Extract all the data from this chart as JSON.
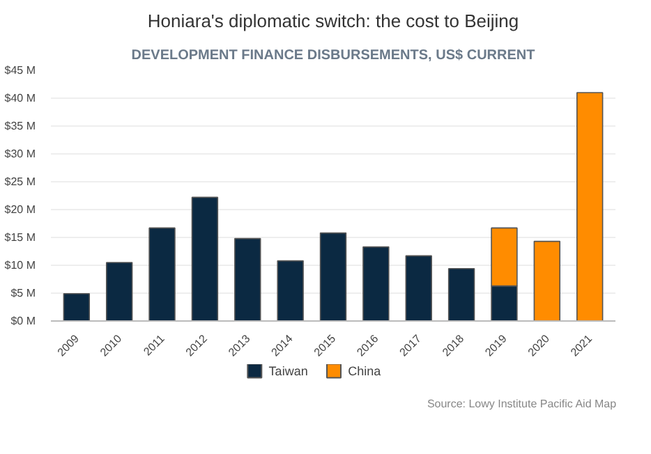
{
  "chart_data": {
    "type": "bar",
    "title": "Honiara's diplomatic switch: the cost to Beijing",
    "subtitle": "DEVELOPMENT FINANCE DISBURSEMENTS, US$ CURRENT",
    "categories": [
      "2009",
      "2010",
      "2011",
      "2012",
      "2013",
      "2014",
      "2015",
      "2016",
      "2017",
      "2018",
      "2019",
      "2020",
      "2021"
    ],
    "series": [
      {
        "name": "Taiwan",
        "color": "#0b2942",
        "values": [
          4.9,
          10.5,
          16.7,
          22.2,
          14.8,
          10.8,
          15.8,
          13.3,
          11.7,
          9.4,
          6.3,
          null,
          null
        ]
      },
      {
        "name": "China",
        "color": "#ff8c00",
        "values": [
          null,
          null,
          null,
          null,
          null,
          null,
          null,
          null,
          null,
          null,
          10.4,
          14.3,
          41.0
        ]
      }
    ],
    "stacked": true,
    "ylim": [
      0,
      45
    ],
    "yticks": [
      {
        "value": 0,
        "label": "$0 M"
      },
      {
        "value": 5,
        "label": "$5 M"
      },
      {
        "value": 10,
        "label": "$10 M"
      },
      {
        "value": 15,
        "label": "$15 M"
      },
      {
        "value": 20,
        "label": "$20 M"
      },
      {
        "value": 25,
        "label": "$25 M"
      },
      {
        "value": 30,
        "label": "$30 M"
      },
      {
        "value": 35,
        "label": "$35 M"
      },
      {
        "value": 40,
        "label": "$40 M"
      },
      {
        "value": 45,
        "label": "$45 M"
      }
    ],
    "grid": "y",
    "legend": "bottom",
    "annotations": [
      "Source: Lowy Institute Pacific Aid Map"
    ]
  }
}
